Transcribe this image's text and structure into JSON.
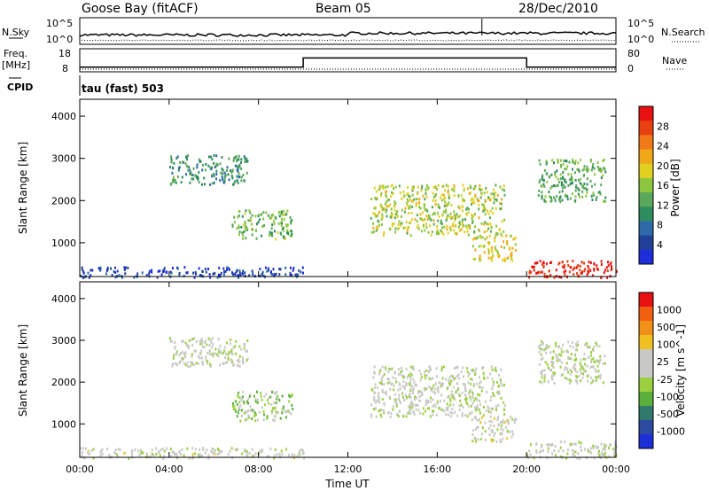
{
  "header": {
    "station": "Goose Bay (fitACF)",
    "beam": "Beam 05",
    "date": "28/Dec/2010"
  },
  "status_panel": {
    "nsky_label": "N.Sky",
    "nsearch_label": "N.Search",
    "nsky_ticks": [
      "10^5",
      "10^0"
    ],
    "nsearch_ticks": [
      "10^5",
      "10^0"
    ],
    "freq_label_1": "Freq.",
    "freq_label_2": "[MHz]",
    "freq_ticks": [
      "18",
      "8"
    ],
    "nave_label": "Nave",
    "nave_ticks": [
      "80",
      "0"
    ],
    "cpid_label": "CPID",
    "cpid_value": "tau (fast) 503"
  },
  "colors": {
    "power": [
      "#1c2ed8",
      "#20409a",
      "#2f6aa8",
      "#2f8c5e",
      "#5aa85a",
      "#8cc63f",
      "#e0d020",
      "#f0a818",
      "#f07a18",
      "#e84010",
      "#e81010"
    ],
    "velocity": [
      "#1c2ed8",
      "#2b4aa0",
      "#2f7a6a",
      "#5ab03a",
      "#9ad040",
      "#c8c8c4",
      "#c8c8c4",
      "#f0c020",
      "#f09018",
      "#f06010",
      "#e81010"
    ]
  },
  "chart_data": [
    {
      "type": "line",
      "title": "N.Sky / N.Search",
      "x_range_hours": [
        0,
        24
      ],
      "y_scale": "log",
      "note": "noise traces shown as lines"
    },
    {
      "type": "line",
      "x_range_hours": [
        0,
        24
      ],
      "ylim": [
        8,
        18
      ],
      "series": [
        {
          "x": [
            0,
            10,
            10,
            20,
            20,
            24
          ],
          "y": [
            10,
            10,
            14,
            14,
            10,
            10
          ]
        }
      ]
    },
    {
      "type": "heatmap",
      "xlabel": "",
      "ylabel": "Slant Range [km]",
      "x_range_hours": [
        0,
        24
      ],
      "ylim": [
        200,
        4400
      ],
      "yticks": [
        "1000",
        "2000",
        "3000",
        "4000"
      ],
      "colorbar_label": "Power [dB]",
      "colorbar_ticks": [
        "28",
        "24",
        "20",
        "16",
        "12",
        "8",
        "4"
      ],
      "clim": [
        0,
        30
      ],
      "regions": [
        {
          "t0": 0.0,
          "t1": 10.0,
          "r0": 200,
          "r1": 450,
          "level": 4
        },
        {
          "t0": 4.0,
          "t1": 7.5,
          "r0": 2400,
          "r1": 3100,
          "level": 10
        },
        {
          "t0": 6.8,
          "t1": 9.5,
          "r0": 1100,
          "r1": 1800,
          "level": 13
        },
        {
          "t0": 13.0,
          "t1": 19.0,
          "r0": 1200,
          "r1": 2400,
          "level": 16
        },
        {
          "t0": 17.5,
          "t1": 19.5,
          "r0": 600,
          "r1": 1200,
          "level": 18
        },
        {
          "t0": 20.0,
          "t1": 24.0,
          "r0": 200,
          "r1": 600,
          "level": 28
        },
        {
          "t0": 20.5,
          "t1": 23.5,
          "r0": 2000,
          "r1": 3000,
          "level": 12
        }
      ]
    },
    {
      "type": "heatmap",
      "xlabel": "Time UT",
      "ylabel": "Slant Range [km]",
      "x_range_hours": [
        0,
        24
      ],
      "ylim": [
        200,
        4400
      ],
      "xticks": [
        "00:00",
        "04:00",
        "08:00",
        "12:00",
        "16:00",
        "20:00",
        "00:00"
      ],
      "yticks": [
        "1000",
        "2000",
        "3000",
        "4000"
      ],
      "colorbar_label": "Velocity [m s^-1]",
      "colorbar_ticks": [
        "1000",
        "500",
        "100",
        "25",
        "-25",
        "-100",
        "-500",
        "-1000"
      ],
      "clim": [
        -1000,
        1000
      ],
      "regions": [
        {
          "t0": 0.0,
          "t1": 10.0,
          "r0": 200,
          "r1": 450,
          "level": 50
        },
        {
          "t0": 4.0,
          "t1": 7.5,
          "r0": 2400,
          "r1": 3100,
          "level": 0
        },
        {
          "t0": 6.8,
          "t1": 9.5,
          "r0": 1100,
          "r1": 1800,
          "level": -150
        },
        {
          "t0": 13.0,
          "t1": 19.0,
          "r0": 1200,
          "r1": 2400,
          "level": 0
        },
        {
          "t0": 17.5,
          "t1": 19.5,
          "r0": 600,
          "r1": 1200,
          "level": 80
        },
        {
          "t0": 20.0,
          "t1": 24.0,
          "r0": 200,
          "r1": 600,
          "level": 0
        },
        {
          "t0": 20.5,
          "t1": 23.5,
          "r0": 2000,
          "r1": 3000,
          "level": 0
        }
      ]
    }
  ]
}
